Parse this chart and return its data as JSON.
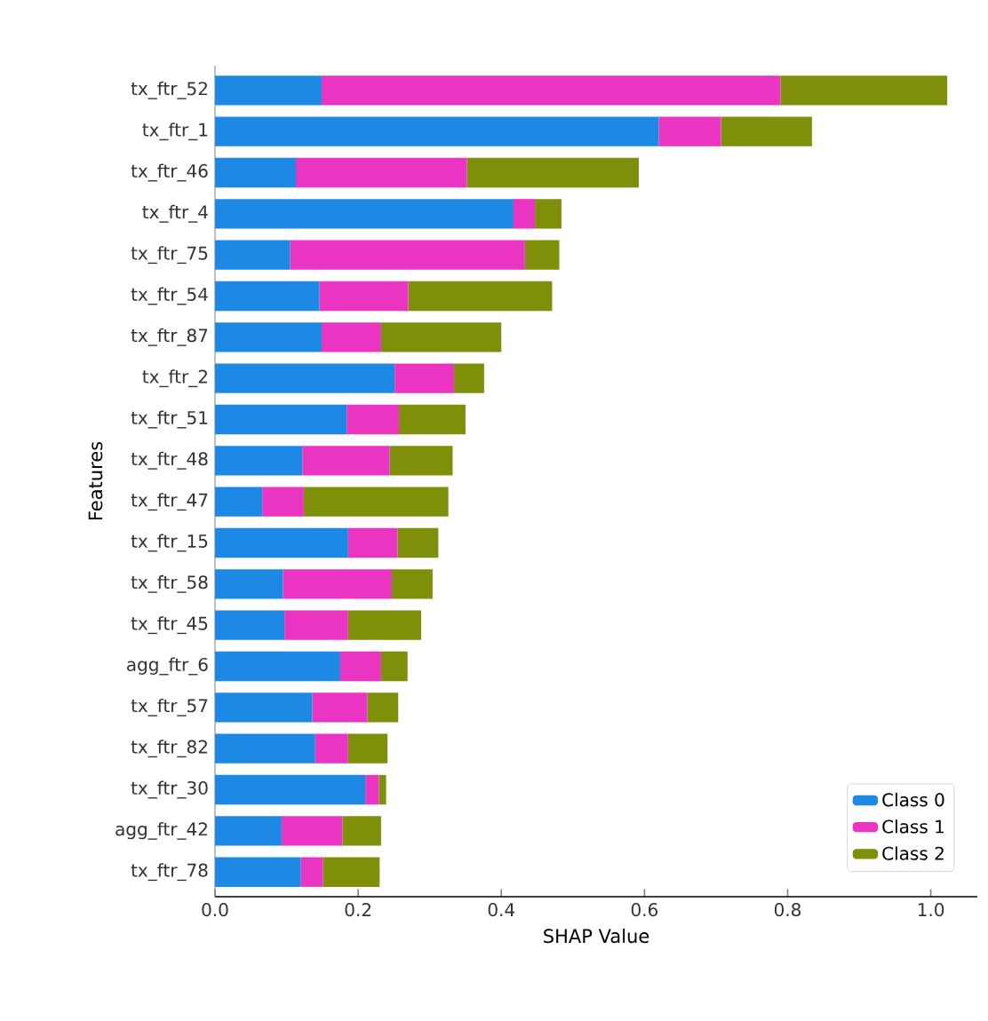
{
  "chart_data": {
    "type": "bar",
    "orientation": "horizontal",
    "stacked": true,
    "xlabel": "SHAP Value",
    "ylabel": "Features",
    "categories": [
      "tx_ftr_52",
      "tx_ftr_1",
      "tx_ftr_46",
      "tx_ftr_4",
      "tx_ftr_75",
      "tx_ftr_54",
      "tx_ftr_87",
      "tx_ftr_2",
      "tx_ftr_51",
      "tx_ftr_48",
      "tx_ftr_47",
      "tx_ftr_15",
      "tx_ftr_58",
      "tx_ftr_45",
      "agg_ftr_6",
      "tx_ftr_57",
      "tx_ftr_82",
      "tx_ftr_30",
      "agg_ftr_42",
      "tx_ftr_78"
    ],
    "series": [
      {
        "name": "Class 0",
        "color": "#1e88e5",
        "values": [
          0.149,
          0.62,
          0.113,
          0.417,
          0.105,
          0.146,
          0.149,
          0.251,
          0.184,
          0.122,
          0.066,
          0.186,
          0.095,
          0.097,
          0.175,
          0.136,
          0.14,
          0.21,
          0.093,
          0.12
        ]
      },
      {
        "name": "Class 1",
        "color": "#e935c1",
        "values": [
          0.641,
          0.087,
          0.239,
          0.03,
          0.328,
          0.124,
          0.083,
          0.083,
          0.073,
          0.122,
          0.058,
          0.069,
          0.152,
          0.089,
          0.057,
          0.077,
          0.046,
          0.019,
          0.085,
          0.031
        ]
      },
      {
        "name": "Class 2",
        "color": "#7f8f0a",
        "values": [
          0.233,
          0.127,
          0.24,
          0.037,
          0.048,
          0.201,
          0.168,
          0.042,
          0.093,
          0.088,
          0.202,
          0.057,
          0.057,
          0.102,
          0.037,
          0.043,
          0.055,
          0.01,
          0.054,
          0.079
        ]
      }
    ],
    "xlim": [
      0,
      1.065
    ],
    "xticks": [
      {
        "value": 0,
        "label": "0.0"
      },
      {
        "value": 0.2,
        "label": "0.2"
      },
      {
        "value": 0.4,
        "label": "0.4"
      },
      {
        "value": 0.6,
        "label": "0.6"
      },
      {
        "value": 0.8,
        "label": "0.8"
      },
      {
        "value": 1.0,
        "label": "1.0"
      }
    ],
    "grid": false,
    "legend": "bottom right"
  }
}
